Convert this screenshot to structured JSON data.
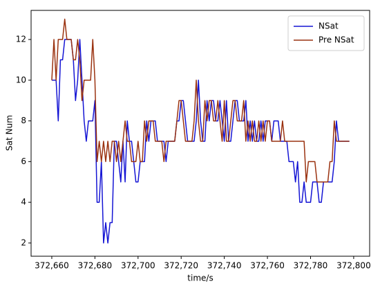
{
  "chart_data": {
    "type": "line",
    "xlabel": "time/s",
    "ylabel": "Sat Num",
    "x": [
      372660,
      372661,
      372662,
      372663,
      372664,
      372665,
      372666,
      372667,
      372668,
      372669,
      372670,
      372671,
      372672,
      372673,
      372674,
      372675,
      372676,
      372677,
      372678,
      372679,
      372680,
      372681,
      372682,
      372683,
      372684,
      372685,
      372686,
      372687,
      372688,
      372689,
      372690,
      372691,
      372692,
      372693,
      372694,
      372695,
      372696,
      372697,
      372698,
      372699,
      372700,
      372701,
      372702,
      372703,
      372704,
      372705,
      372706,
      372707,
      372708,
      372709,
      372710,
      372711,
      372712,
      372713,
      372714,
      372715,
      372716,
      372717,
      372718,
      372719,
      372720,
      372721,
      372722,
      372723,
      372724,
      372725,
      372726,
      372727,
      372728,
      372729,
      372730,
      372731,
      372732,
      372733,
      372734,
      372735,
      372736,
      372737,
      372738,
      372739,
      372740,
      372741,
      372742,
      372743,
      372744,
      372745,
      372746,
      372747,
      372748,
      372749,
      372750,
      372751,
      372752,
      372753,
      372754,
      372755,
      372756,
      372757,
      372758,
      372759,
      372760,
      372761,
      372762,
      372763,
      372764,
      372765,
      372766,
      372767,
      372768,
      372769,
      372770,
      372771,
      372772,
      372773,
      372774,
      372775,
      372776,
      372777,
      372778,
      372779,
      372780,
      372781,
      372782,
      372783,
      372784,
      372785,
      372786,
      372787,
      372788,
      372789,
      372790,
      372791,
      372792,
      372793,
      372794,
      372795,
      372796,
      372797,
      372798
    ],
    "series": [
      {
        "name": "NSat",
        "color": "#1414d4",
        "values": [
          10,
          10,
          10,
          8,
          11,
          11,
          12,
          12,
          12,
          12,
          11,
          9,
          10,
          12,
          10,
          8,
          7,
          8,
          8,
          8,
          9,
          4,
          4,
          6,
          2,
          3,
          2,
          3,
          3,
          7,
          7,
          6,
          5,
          7,
          5,
          8,
          7,
          7,
          6,
          5,
          5,
          6,
          6,
          6,
          8,
          7,
          8,
          8,
          8,
          7,
          7,
          7,
          7,
          6,
          7,
          7,
          7,
          7,
          8,
          8,
          9,
          9,
          8,
          7,
          7,
          7,
          7,
          8,
          10,
          8,
          7,
          7,
          9,
          8,
          9,
          9,
          8,
          8,
          9,
          8,
          7,
          9,
          7,
          7,
          8,
          9,
          9,
          8,
          8,
          8,
          9,
          7,
          8,
          7,
          8,
          7,
          7,
          8,
          7,
          8,
          8,
          8,
          7,
          8,
          8,
          8,
          7,
          7,
          7,
          7,
          6,
          6,
          6,
          5,
          6,
          4,
          4,
          5,
          4,
          4,
          4,
          5,
          5,
          5,
          4,
          4,
          5,
          5,
          5,
          5,
          5,
          6,
          8,
          7,
          7,
          7,
          7,
          7,
          7
        ]
      },
      {
        "name": "Pre NSat",
        "color": "#9a3210",
        "values": [
          10,
          12,
          10,
          12,
          12,
          12,
          13,
          12,
          12,
          12,
          11,
          11,
          12,
          11,
          9,
          10,
          10,
          10,
          10,
          12,
          10,
          6,
          7,
          6,
          7,
          6,
          7,
          6,
          7,
          7,
          6,
          7,
          6,
          7,
          8,
          7,
          7,
          6,
          6,
          6,
          7,
          6,
          6,
          8,
          7,
          8,
          8,
          8,
          7,
          7,
          7,
          7,
          6,
          7,
          7,
          7,
          7,
          7,
          8,
          9,
          9,
          8,
          7,
          7,
          7,
          7,
          8,
          10,
          8,
          7,
          7,
          9,
          8,
          9,
          9,
          8,
          8,
          9,
          8,
          7,
          9,
          7,
          7,
          8,
          9,
          9,
          8,
          8,
          8,
          9,
          7,
          8,
          7,
          8,
          7,
          7,
          8,
          7,
          8,
          7,
          8,
          8,
          7,
          7,
          7,
          7,
          7,
          8,
          7,
          7,
          7,
          7,
          7,
          7,
          7,
          7,
          7,
          7,
          5,
          6,
          6,
          6,
          6,
          5,
          5,
          5,
          5,
          5,
          5,
          6,
          6,
          8,
          7,
          7,
          7,
          7,
          7,
          7,
          7
        ]
      }
    ],
    "xlim": [
      372650.4,
      372807.4
    ],
    "xticks": [
      {
        "value": 372660,
        "label": "372,660"
      },
      {
        "value": 372680,
        "label": "372,680"
      },
      {
        "value": 372700,
        "label": "372,700"
      },
      {
        "value": 372720,
        "label": "372,720"
      },
      {
        "value": 372740,
        "label": "372,740"
      },
      {
        "value": 372760,
        "label": "372,760"
      },
      {
        "value": 372780,
        "label": "372,780"
      },
      {
        "value": 372800,
        "label": "372,800"
      }
    ],
    "ylim": [
      1.35,
      13.43
    ],
    "yticks": [
      2,
      4,
      6,
      8,
      10,
      12
    ],
    "legend": "upper right"
  }
}
